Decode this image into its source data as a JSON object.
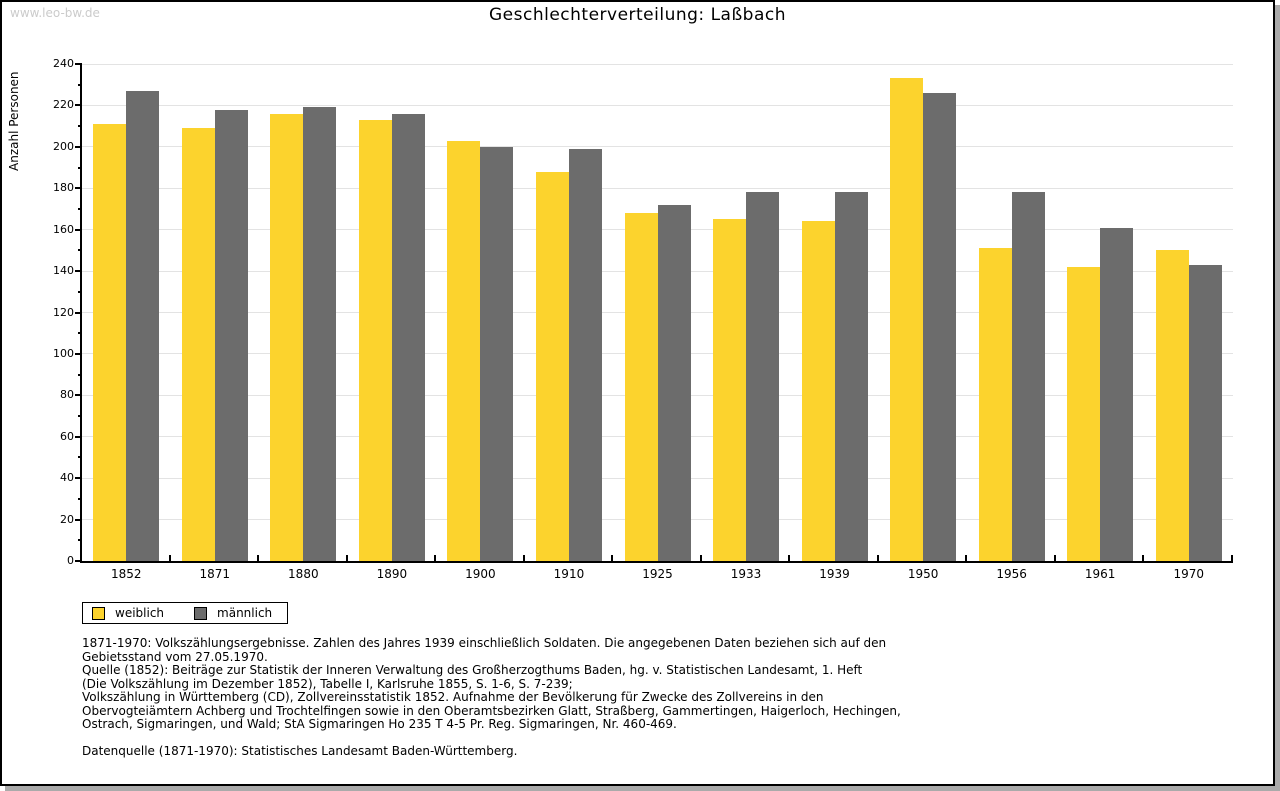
{
  "page": {
    "watermark": "www.leo-bw.de",
    "title": "Geschlechterverteilung: Laßbach"
  },
  "chart_data": {
    "type": "bar",
    "title": "Geschlechterverteilung: Laßbach",
    "xlabel": "",
    "ylabel": "Anzahl Personen",
    "ylim": [
      0,
      240
    ],
    "ytick_step": 20,
    "minor_tick_step": 10,
    "grid": true,
    "legend_position": "bottom-left",
    "categories": [
      "1852",
      "1871",
      "1880",
      "1890",
      "1900",
      "1910",
      "1925",
      "1933",
      "1939",
      "1950",
      "1956",
      "1961",
      "1970"
    ],
    "series": [
      {
        "name": "weiblich",
        "color": "#fcd32d",
        "values": [
          211,
          209,
          216,
          213,
          203,
          188,
          168,
          165,
          164,
          233,
          151,
          142,
          150
        ]
      },
      {
        "name": "männlich",
        "color": "#6c6c6c",
        "values": [
          227,
          218,
          219,
          216,
          200,
          199,
          172,
          178,
          178,
          226,
          178,
          161,
          143
        ]
      }
    ]
  },
  "colors": {
    "weiblich": "#fcd32d",
    "maennlich": "#6c6c6c",
    "gridline": "#e3e3e3",
    "watermark": "#cbcbcb"
  },
  "footnotes": {
    "block": [
      "1871-1970: Volkszählungsergebnisse. Zahlen des Jahres 1939 einschließlich Soldaten. Die angegebenen Daten beziehen sich auf den",
      "Gebietsstand vom 27.05.1970.",
      "Quelle (1852): Beiträge zur Statistik der Inneren Verwaltung des Großherzogthums Baden, hg. v. Statistischen Landesamt, 1. Heft",
      "(Die Volkszählung im Dezember 1852), Tabelle I, Karlsruhe 1855, S. 1-6, S. 7-239;",
      "Volkszählung in Württemberg (CD), Zollvereinsstatistik 1852. Aufnahme der Bevölkerung für Zwecke des Zollvereins in den",
      "Obervogteiämtern Achberg und Trochtelfingen sowie in den Oberamtsbezirken Glatt, Straßberg, Gammertingen, Haigerloch, Hechingen,",
      "Ostrach, Sigmaringen, und Wald; StA Sigmaringen Ho 235 T 4-5 Pr. Reg. Sigmaringen, Nr. 460-469."
    ],
    "datasource": "Datenquelle (1871-1970): Statistisches Landesamt Baden-Württemberg."
  }
}
